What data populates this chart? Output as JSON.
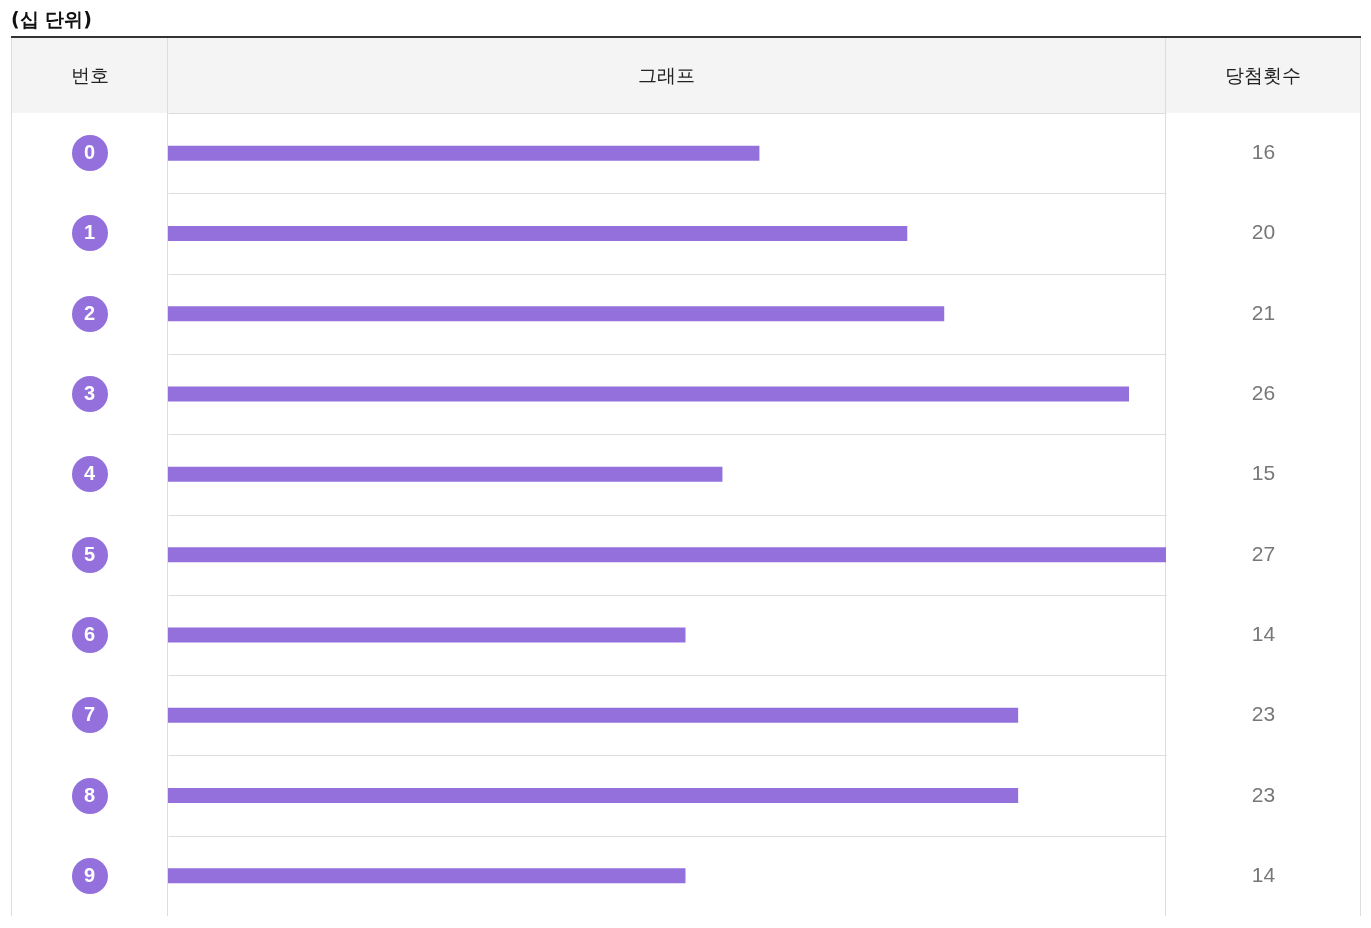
{
  "chart_data": {
    "type": "bar",
    "orientation": "horizontal",
    "title": "(십 단위)",
    "ylabel": "번호",
    "xlabel": "그래프",
    "annotations": [
      "당첨횟수"
    ],
    "categories": [
      "0",
      "1",
      "2",
      "3",
      "4",
      "5",
      "6",
      "7",
      "8",
      "9"
    ],
    "values": [
      16,
      20,
      21,
      26,
      15,
      27,
      14,
      23,
      23,
      14
    ],
    "color": "#9370db",
    "data_labels": true,
    "grid": "y"
  }
}
